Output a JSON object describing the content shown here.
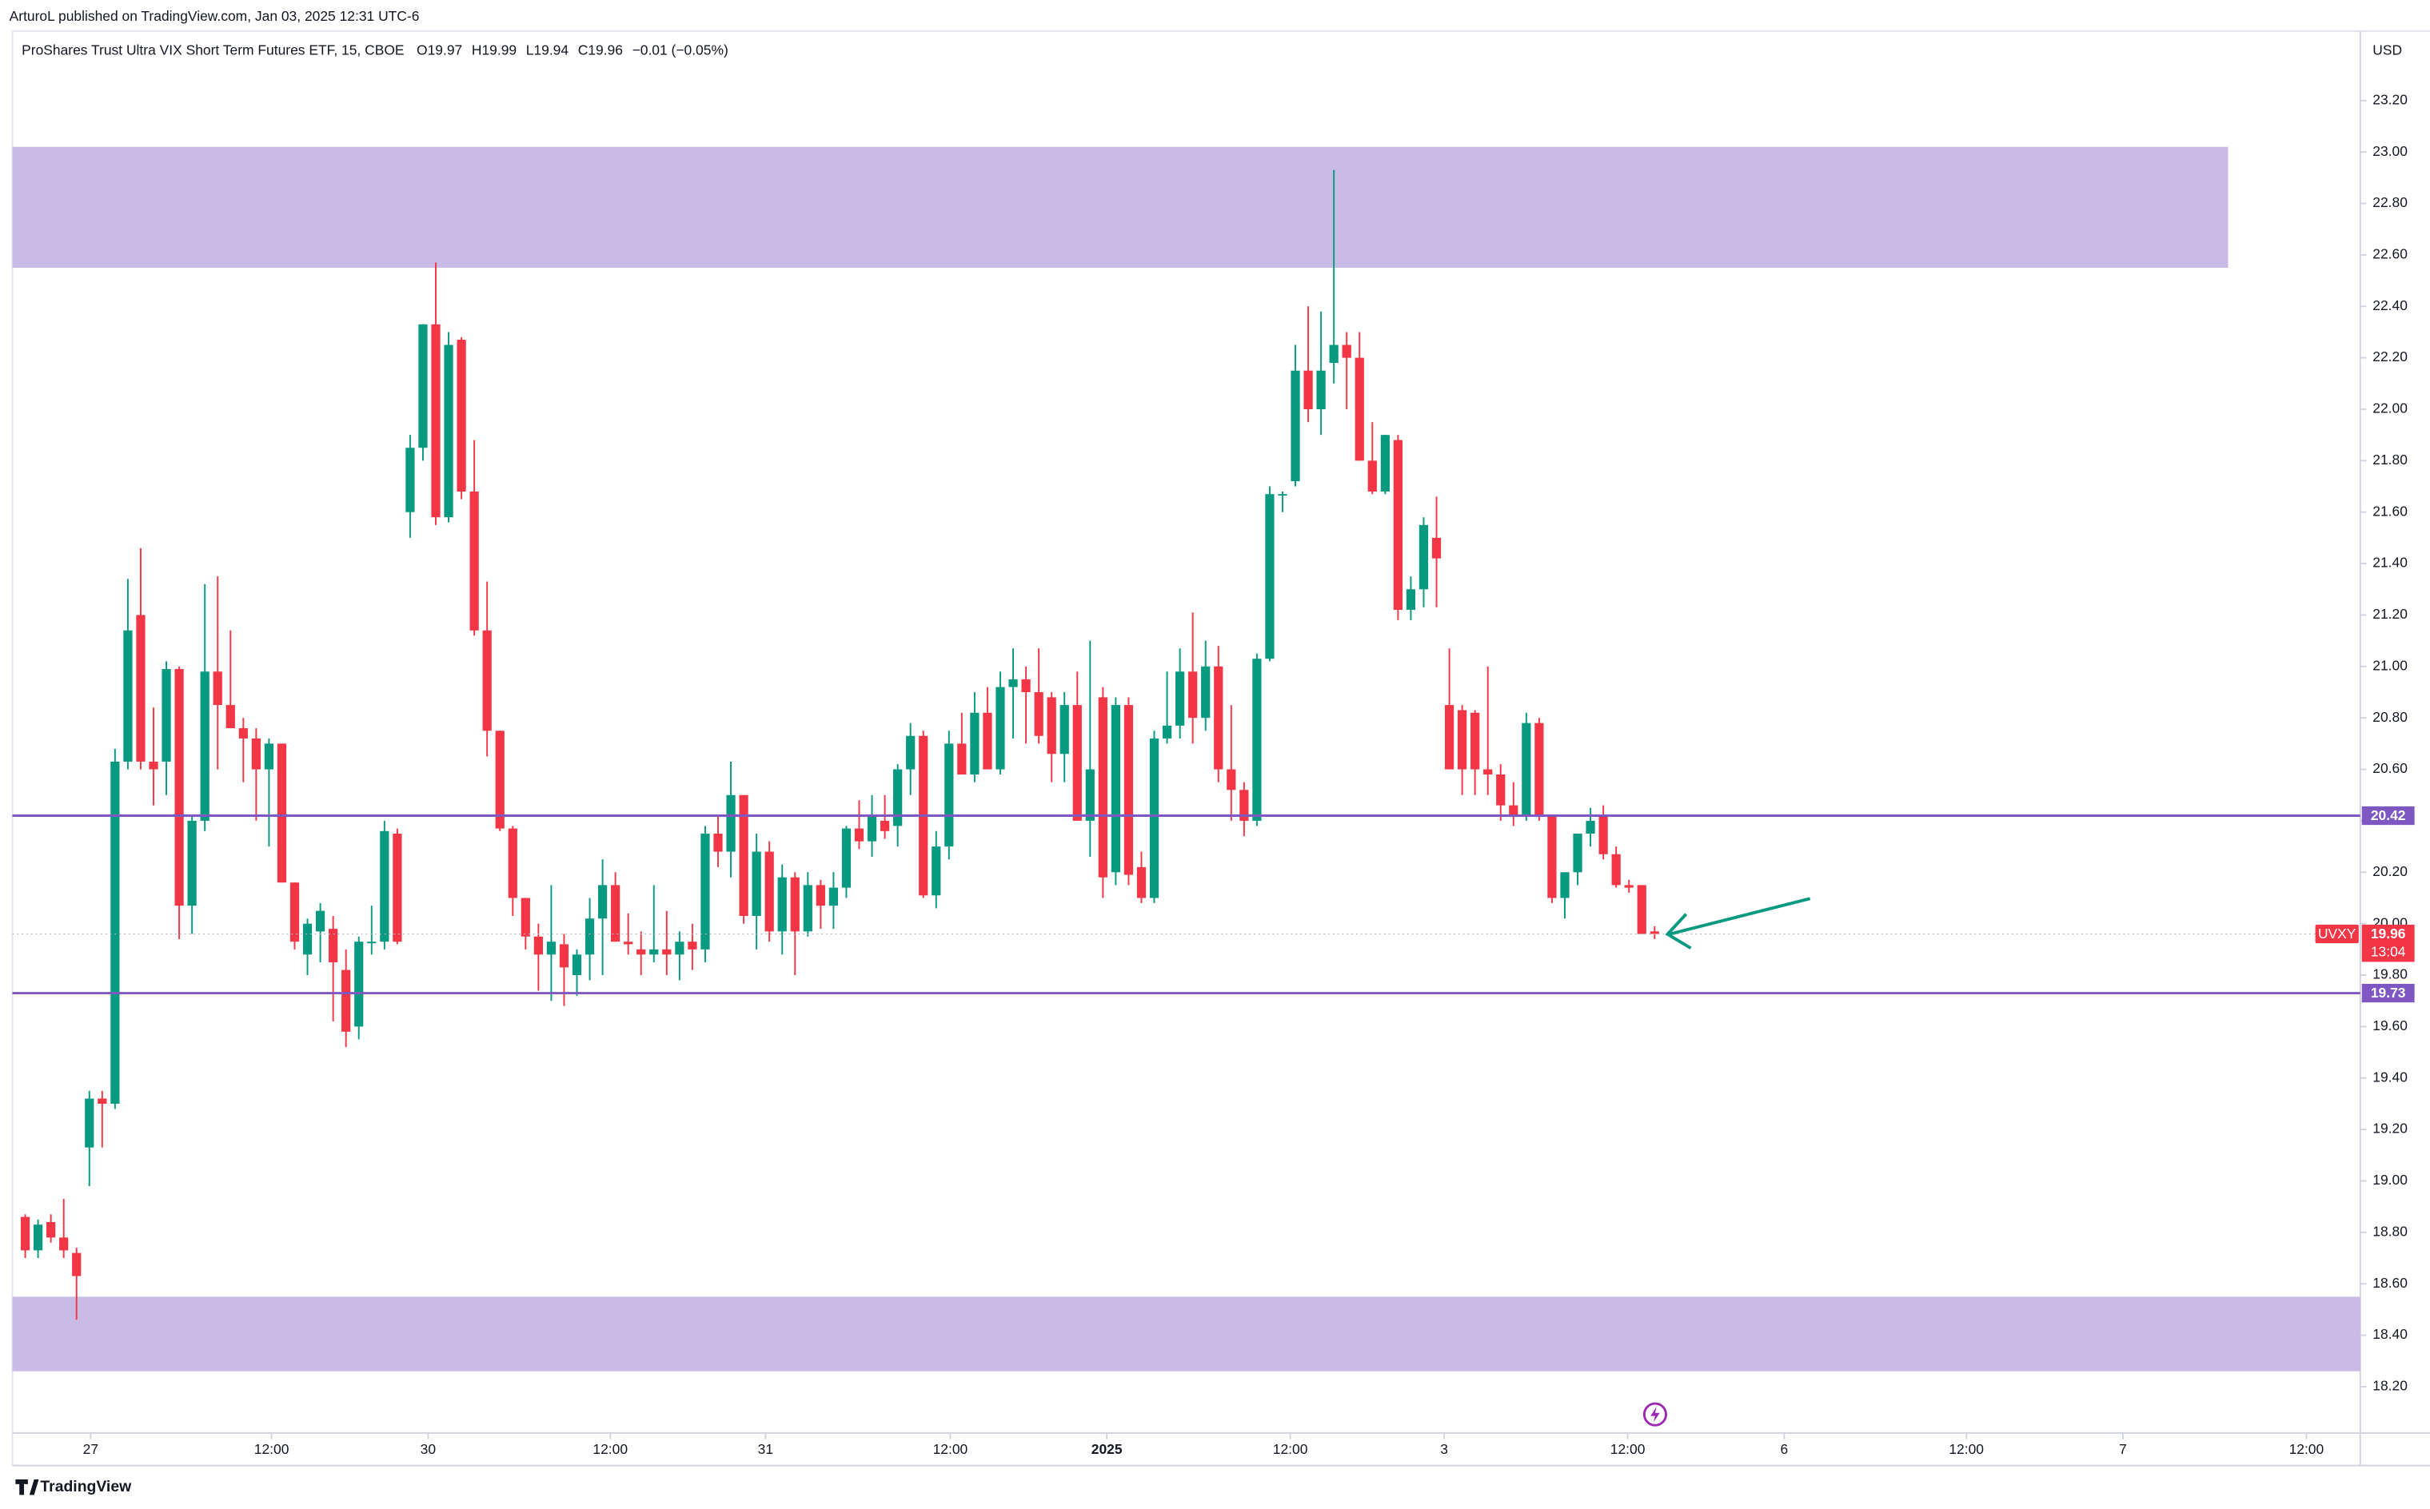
{
  "header": {
    "published": "ArturoL published on TradingView.com, Jan 03, 2025 12:31 UTC-6",
    "brand": "TradingView"
  },
  "chart_data": {
    "type": "candlestick",
    "title": "ProShares Trust Ultra VIX Short Term Futures ETF, 15, CBOE",
    "ohlc_legend": [
      "O19.97",
      "H19.99",
      "L19.94",
      "C19.96",
      "−0.01 (−0.05%)"
    ],
    "symbol": "UVXY",
    "currency": "USD",
    "countdown": "13:04",
    "up_color": "#089981",
    "down_color": "#f23645",
    "grid": false,
    "ylim": [
      18.02,
      23.47
    ],
    "yticks": [
      {
        "value": 18.2,
        "label": "18.20"
      },
      {
        "value": 18.4,
        "label": "18.40"
      },
      {
        "value": 18.6,
        "label": "18.60"
      },
      {
        "value": 18.8,
        "label": "18.80"
      },
      {
        "value": 19,
        "label": "19.00"
      },
      {
        "value": 19.2,
        "label": "19.20"
      },
      {
        "value": 19.4,
        "label": "19.40"
      },
      {
        "value": 19.6,
        "label": "19.60"
      },
      {
        "value": 19.8,
        "label": "19.80"
      },
      {
        "value": 20,
        "label": "20.00"
      },
      {
        "value": 20.2,
        "label": "20.20"
      },
      {
        "value": 20.4,
        "label": "20.40"
      },
      {
        "value": 20.6,
        "label": "20.60"
      },
      {
        "value": 20.8,
        "label": "20.80"
      },
      {
        "value": 21,
        "label": "21.00"
      },
      {
        "value": 21.2,
        "label": "21.20"
      },
      {
        "value": 21.4,
        "label": "21.40"
      },
      {
        "value": 21.6,
        "label": "21.60"
      },
      {
        "value": 21.8,
        "label": "21.80"
      },
      {
        "value": 22,
        "label": "22.00"
      },
      {
        "value": 22.2,
        "label": "22.20"
      },
      {
        "value": 22.4,
        "label": "22.40"
      },
      {
        "value": 22.6,
        "label": "22.60"
      },
      {
        "value": 22.8,
        "label": "22.80"
      },
      {
        "value": 23,
        "label": "23.00"
      },
      {
        "value": 23.2,
        "label": "23.20"
      }
    ],
    "xlim": [
      -1,
      182
    ],
    "xticks": [
      {
        "value": 5.1,
        "label": "27"
      },
      {
        "value": 19.2,
        "label": "12:00"
      },
      {
        "value": 31.4,
        "label": "30"
      },
      {
        "value": 45.6,
        "label": "12:00"
      },
      {
        "value": 57.7,
        "label": "31"
      },
      {
        "value": 72.1,
        "label": "12:00"
      },
      {
        "value": 84.3,
        "label": "2025"
      },
      {
        "value": 98.6,
        "label": "12:00"
      },
      {
        "value": 110.6,
        "label": "3"
      },
      {
        "value": 124.9,
        "label": "12:00"
      },
      {
        "value": 137.1,
        "label": "6"
      },
      {
        "value": 151.3,
        "label": "12:00"
      },
      {
        "value": 163.5,
        "label": "7"
      },
      {
        "value": 177.8,
        "label": "12:00"
      }
    ],
    "zones": [
      {
        "from": 22.55,
        "to": 23.02,
        "x_end": 171.7,
        "color": "#c9bbe6"
      },
      {
        "from": 18.26,
        "to": 18.55,
        "x_end": 182,
        "color": "#c9bbe6"
      }
    ],
    "levels": [
      {
        "value": 20.42,
        "color": "#7e57c2"
      },
      {
        "value": 19.73,
        "color": "#7e57c2"
      }
    ],
    "candles": [
      [
        18.86,
        18.87,
        18.7,
        18.73
      ],
      [
        18.73,
        18.85,
        18.7,
        18.83
      ],
      [
        18.84,
        18.87,
        18.76,
        18.78
      ],
      [
        18.78,
        18.93,
        18.7,
        18.73
      ],
      [
        18.72,
        18.74,
        18.46,
        18.63
      ],
      [
        19.13,
        19.35,
        18.98,
        19.32
      ],
      [
        19.32,
        19.35,
        19.13,
        19.3
      ],
      [
        19.3,
        20.68,
        19.28,
        20.63
      ],
      [
        20.63,
        21.34,
        20.6,
        21.14
      ],
      [
        21.2,
        21.46,
        20.6,
        20.63
      ],
      [
        20.63,
        20.84,
        20.46,
        20.6
      ],
      [
        20.63,
        21.02,
        20.5,
        20.99
      ],
      [
        20.99,
        21.0,
        19.94,
        20.07
      ],
      [
        20.07,
        20.42,
        19.96,
        20.4
      ],
      [
        20.4,
        21.32,
        20.36,
        20.98
      ],
      [
        20.98,
        21.35,
        20.6,
        20.85
      ],
      [
        20.85,
        21.14,
        20.76,
        20.76
      ],
      [
        20.76,
        20.8,
        20.55,
        20.72
      ],
      [
        20.72,
        20.76,
        20.4,
        20.6
      ],
      [
        20.6,
        20.72,
        20.3,
        20.7
      ],
      [
        20.7,
        20.7,
        20.16,
        20.16
      ],
      [
        20.16,
        20.16,
        19.9,
        19.93
      ],
      [
        19.88,
        20.02,
        19.8,
        20.0
      ],
      [
        19.97,
        20.08,
        19.85,
        20.05
      ],
      [
        19.98,
        20.03,
        19.62,
        19.85
      ],
      [
        19.82,
        19.9,
        19.52,
        19.58
      ],
      [
        19.6,
        19.95,
        19.55,
        19.93
      ],
      [
        19.93,
        20.07,
        19.88,
        19.93
      ],
      [
        19.93,
        20.4,
        19.9,
        20.36
      ],
      [
        20.35,
        20.37,
        19.92,
        19.93
      ],
      [
        21.6,
        21.9,
        21.5,
        21.85
      ],
      [
        21.85,
        22.33,
        21.8,
        22.33
      ],
      [
        22.33,
        22.57,
        21.55,
        21.58
      ],
      [
        21.58,
        22.3,
        21.56,
        22.25
      ],
      [
        22.27,
        22.28,
        21.65,
        21.68
      ],
      [
        21.68,
        21.88,
        21.12,
        21.14
      ],
      [
        21.14,
        21.33,
        20.65,
        20.75
      ],
      [
        20.75,
        20.75,
        20.36,
        20.37
      ],
      [
        20.37,
        20.38,
        20.03,
        20.1
      ],
      [
        20.1,
        20.1,
        19.9,
        19.95
      ],
      [
        19.95,
        20.0,
        19.74,
        19.88
      ],
      [
        19.88,
        20.15,
        19.7,
        19.93
      ],
      [
        19.92,
        19.96,
        19.68,
        19.83
      ],
      [
        19.8,
        19.9,
        19.72,
        19.88
      ],
      [
        19.88,
        20.1,
        19.78,
        20.02
      ],
      [
        20.02,
        20.25,
        19.8,
        20.15
      ],
      [
        20.15,
        20.2,
        19.93,
        19.93
      ],
      [
        19.93,
        20.04,
        19.88,
        19.92
      ],
      [
        19.9,
        19.97,
        19.8,
        19.88
      ],
      [
        19.88,
        20.15,
        19.85,
        19.9
      ],
      [
        19.9,
        20.05,
        19.8,
        19.88
      ],
      [
        19.88,
        19.97,
        19.78,
        19.93
      ],
      [
        19.93,
        20.0,
        19.82,
        19.9
      ],
      [
        19.9,
        20.38,
        19.85,
        20.35
      ],
      [
        20.35,
        20.42,
        20.22,
        20.28
      ],
      [
        20.28,
        20.63,
        20.18,
        20.5
      ],
      [
        20.5,
        20.5,
        20.0,
        20.03
      ],
      [
        20.03,
        20.35,
        19.9,
        20.28
      ],
      [
        20.28,
        20.32,
        19.93,
        19.97
      ],
      [
        19.97,
        20.23,
        19.88,
        20.18
      ],
      [
        20.18,
        20.2,
        19.8,
        19.97
      ],
      [
        19.97,
        20.2,
        19.95,
        20.15
      ],
      [
        20.15,
        20.17,
        19.98,
        20.07
      ],
      [
        20.07,
        20.2,
        19.98,
        20.14
      ],
      [
        20.14,
        20.38,
        20.1,
        20.37
      ],
      [
        20.37,
        20.48,
        20.29,
        20.32
      ],
      [
        20.32,
        20.5,
        20.26,
        20.42
      ],
      [
        20.4,
        20.5,
        20.33,
        20.36
      ],
      [
        20.38,
        20.62,
        20.3,
        20.6
      ],
      [
        20.6,
        20.78,
        20.5,
        20.73
      ],
      [
        20.73,
        20.75,
        20.1,
        20.11
      ],
      [
        20.11,
        20.36,
        20.06,
        20.3
      ],
      [
        20.3,
        20.75,
        20.25,
        20.7
      ],
      [
        20.7,
        20.82,
        20.58,
        20.58
      ],
      [
        20.58,
        20.9,
        20.55,
        20.82
      ],
      [
        20.82,
        20.92,
        20.6,
        20.6
      ],
      [
        20.6,
        20.98,
        20.58,
        20.92
      ],
      [
        20.92,
        21.07,
        20.72,
        20.95
      ],
      [
        20.95,
        21.0,
        20.7,
        20.9
      ],
      [
        20.9,
        21.07,
        20.7,
        20.73
      ],
      [
        20.88,
        20.9,
        20.55,
        20.66
      ],
      [
        20.66,
        20.9,
        20.55,
        20.85
      ],
      [
        20.85,
        20.98,
        20.4,
        20.4
      ],
      [
        20.4,
        21.1,
        20.26,
        20.6
      ],
      [
        20.88,
        20.92,
        20.1,
        20.18
      ],
      [
        20.2,
        20.88,
        20.15,
        20.85
      ],
      [
        20.85,
        20.88,
        20.15,
        20.19
      ],
      [
        20.22,
        20.28,
        20.08,
        20.1
      ],
      [
        20.1,
        20.75,
        20.08,
        20.72
      ],
      [
        20.72,
        20.98,
        20.7,
        20.77
      ],
      [
        20.77,
        21.07,
        20.72,
        20.98
      ],
      [
        20.98,
        21.21,
        20.7,
        20.8
      ],
      [
        20.8,
        21.1,
        20.75,
        21.0
      ],
      [
        21.0,
        21.08,
        20.55,
        20.6
      ],
      [
        20.6,
        20.85,
        20.4,
        20.52
      ],
      [
        20.52,
        20.55,
        20.34,
        20.4
      ],
      [
        20.4,
        21.05,
        20.38,
        21.03
      ],
      [
        21.03,
        21.7,
        21.02,
        21.67
      ],
      [
        21.67,
        21.68,
        21.6,
        21.67
      ],
      [
        21.72,
        22.25,
        21.7,
        22.15
      ],
      [
        22.15,
        22.4,
        21.95,
        22.0
      ],
      [
        22.0,
        22.38,
        21.9,
        22.15
      ],
      [
        22.18,
        22.93,
        22.1,
        22.25
      ],
      [
        22.25,
        22.3,
        22.0,
        22.2
      ],
      [
        22.2,
        22.3,
        21.8,
        21.8
      ],
      [
        21.8,
        21.95,
        21.67,
        21.68
      ],
      [
        21.68,
        21.9,
        21.67,
        21.9
      ],
      [
        21.88,
        21.9,
        21.18,
        21.22
      ],
      [
        21.22,
        21.35,
        21.18,
        21.3
      ],
      [
        21.3,
        21.58,
        21.23,
        21.55
      ],
      [
        21.5,
        21.66,
        21.23,
        21.42
      ],
      [
        20.85,
        21.07,
        20.6,
        20.6
      ],
      [
        20.83,
        20.85,
        20.5,
        20.6
      ],
      [
        20.82,
        20.83,
        20.5,
        20.6
      ],
      [
        20.6,
        21.0,
        20.5,
        20.58
      ],
      [
        20.58,
        20.62,
        20.4,
        20.46
      ],
      [
        20.46,
        20.55,
        20.38,
        20.42
      ],
      [
        20.42,
        20.82,
        20.4,
        20.78
      ],
      [
        20.78,
        20.8,
        20.4,
        20.42
      ],
      [
        20.42,
        20.42,
        20.08,
        20.1
      ],
      [
        20.1,
        20.2,
        20.02,
        20.2
      ],
      [
        20.2,
        20.35,
        20.15,
        20.35
      ],
      [
        20.35,
        20.45,
        20.3,
        20.4
      ],
      [
        20.42,
        20.46,
        20.25,
        20.27
      ],
      [
        20.27,
        20.3,
        20.14,
        20.15
      ],
      [
        20.15,
        20.17,
        20.12,
        20.14
      ],
      [
        20.15,
        20.15,
        19.96,
        19.96
      ],
      [
        19.97,
        19.99,
        19.94,
        19.96
      ]
    ]
  }
}
